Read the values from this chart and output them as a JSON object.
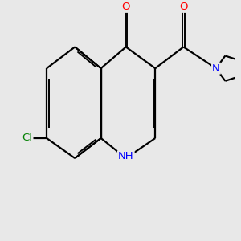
{
  "background_color": "#e8e8e8",
  "bond_color": "#000000",
  "atom_colors": {
    "O": "#ff0000",
    "N": "#0000ff",
    "Cl": "#008000",
    "C": "#000000"
  }
}
